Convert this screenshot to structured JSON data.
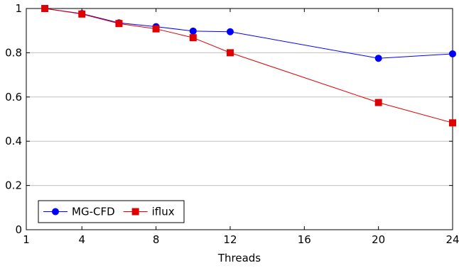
{
  "chart_data": {
    "type": "line",
    "xlabel": "Threads",
    "ylabel": "",
    "xlim": [
      1,
      24
    ],
    "ylim": [
      0,
      1
    ],
    "x_ticks": [
      1,
      4,
      8,
      12,
      16,
      20,
      24
    ],
    "y_ticks": [
      0,
      0.2,
      0.4,
      0.6,
      0.8,
      1
    ],
    "grid": "horizontal",
    "legend_position": "bottom-left",
    "series": [
      {
        "name": "MG-CFD",
        "color": "#0000ff",
        "marker": "circle",
        "x": [
          2,
          4,
          6,
          8,
          10,
          12,
          20,
          24
        ],
        "y": [
          1.0,
          0.977,
          0.935,
          0.918,
          0.898,
          0.895,
          0.775,
          0.795
        ]
      },
      {
        "name": "iflux",
        "color": "#e00000",
        "marker": "square",
        "x": [
          2,
          4,
          6,
          8,
          10,
          12,
          20,
          24
        ],
        "y": [
          1.0,
          0.975,
          0.932,
          0.908,
          0.868,
          0.8,
          0.575,
          0.483
        ]
      }
    ]
  }
}
